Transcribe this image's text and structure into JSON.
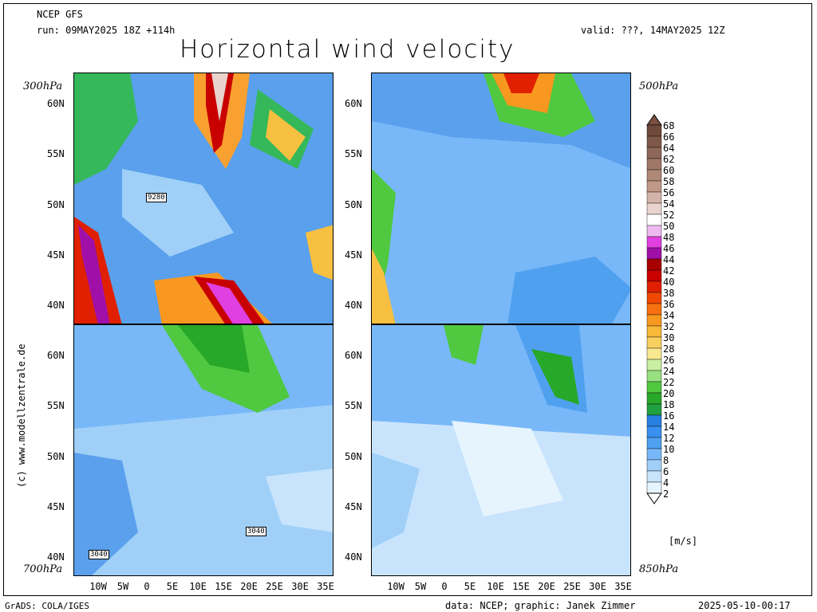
{
  "header": {
    "model": "NCEP GFS",
    "run": "run: 09MAY2025 18Z +114h",
    "valid": "valid: ???, 14MAY2025 12Z",
    "title": "Horizontal wind velocity"
  },
  "panels": [
    {
      "level": "300hPa",
      "contour_label": "9280"
    },
    {
      "level": "500hPa"
    },
    {
      "level": "700hPa",
      "contour_labels": [
        "3040",
        "3040"
      ]
    },
    {
      "level": "850hPa"
    }
  ],
  "lat_labels": [
    "60N",
    "55N",
    "50N",
    "45N",
    "40N"
  ],
  "lon_labels": [
    "10W",
    "5W",
    "0",
    "5E",
    "10E",
    "15E",
    "20E",
    "25E",
    "30E",
    "35E"
  ],
  "colorbar": {
    "unit": "[m/s]",
    "values": [
      "68",
      "66",
      "64",
      "62",
      "60",
      "58",
      "56",
      "54",
      "52",
      "50",
      "48",
      "46",
      "44",
      "42",
      "40",
      "38",
      "36",
      "34",
      "32",
      "30",
      "28",
      "26",
      "24",
      "22",
      "20",
      "18",
      "16",
      "14",
      "12",
      "10",
      "8",
      "6",
      "4",
      "2"
    ],
    "colors": [
      "#6e4a3a",
      "#7e5848",
      "#8e6858",
      "#a07868",
      "#b08878",
      "#c09888",
      "#d4b4a8",
      "#e8d4cc",
      "#ffffff",
      "#f0b8f0",
      "#e040e0",
      "#a010a8",
      "#a80000",
      "#c80000",
      "#e02000",
      "#f04800",
      "#f87010",
      "#f89820",
      "#f8b838",
      "#f8d060",
      "#f8e890",
      "#c8f0a0",
      "#98e080",
      "#50c840",
      "#28a828",
      "#20a040",
      "#2880e0",
      "#3890f0",
      "#50a0f0",
      "#78b8f8",
      "#a0d0f8",
      "#c8e4fc",
      "#e6f4fe"
    ],
    "gray_top": "#7a5040"
  },
  "footer": {
    "left": "GrADS: COLA/IGES",
    "center": "data: NCEP; graphic: Janek Zimmer",
    "right": "2025-05-10-00:17",
    "side": "(c) www.modellzentrale.de"
  }
}
